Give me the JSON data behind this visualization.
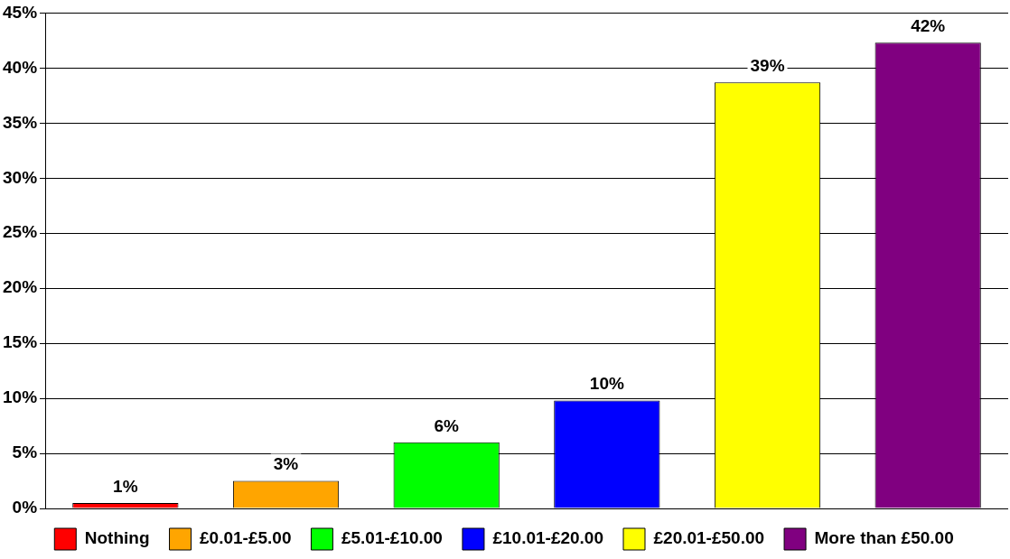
{
  "chart_data": {
    "type": "bar",
    "categories": [
      null,
      null,
      null,
      null,
      null,
      null
    ],
    "series": [
      {
        "name": "Nothing",
        "color": "#ff0000",
        "values": [
          0.5,
          null,
          null,
          null,
          null,
          null
        ],
        "value_labels": [
          "1%",
          null,
          null,
          null,
          null,
          null
        ]
      },
      {
        "name": "£0.01-£5.00",
        "color": "#ffa500",
        "values": [
          null,
          2.5,
          null,
          null,
          null,
          null
        ],
        "value_labels": [
          null,
          "3%",
          null,
          null,
          null,
          null
        ]
      },
      {
        "name": "£5.01-£10.00",
        "color": "#00ff00",
        "values": [
          null,
          null,
          6.0,
          null,
          null,
          null
        ],
        "value_labels": [
          null,
          null,
          "6%",
          null,
          null,
          null
        ]
      },
      {
        "name": "£10.01-£20.00",
        "color": "#0000ff",
        "values": [
          null,
          null,
          null,
          9.8,
          null,
          null
        ],
        "value_labels": [
          null,
          null,
          null,
          "10%",
          null,
          null
        ]
      },
      {
        "name": "£20.01-£50.00",
        "color": "#ffff00",
        "values": [
          null,
          null,
          null,
          null,
          38.7,
          null
        ],
        "value_labels": [
          null,
          null,
          null,
          null,
          "39%",
          null
        ]
      },
      {
        "name": "More than £50.00",
        "color": "#800080",
        "values": [
          null,
          null,
          null,
          null,
          null,
          42.3
        ],
        "value_labels": [
          null,
          null,
          null,
          null,
          null,
          "42%"
        ]
      }
    ],
    "ylim": [
      0,
      45
    ],
    "yticks": [
      {
        "value": 0,
        "label": "0%"
      },
      {
        "value": 5,
        "label": "5%"
      },
      {
        "value": 10,
        "label": "10%"
      },
      {
        "value": 15,
        "label": "15%"
      },
      {
        "value": 20,
        "label": "20%"
      },
      {
        "value": 25,
        "label": "25%"
      },
      {
        "value": 30,
        "label": "30%"
      },
      {
        "value": 35,
        "label": "35%"
      },
      {
        "value": 40,
        "label": "40%"
      },
      {
        "value": 45,
        "label": "45%"
      }
    ],
    "grid": "y",
    "legend": "bottom",
    "tick_labels": "y"
  }
}
